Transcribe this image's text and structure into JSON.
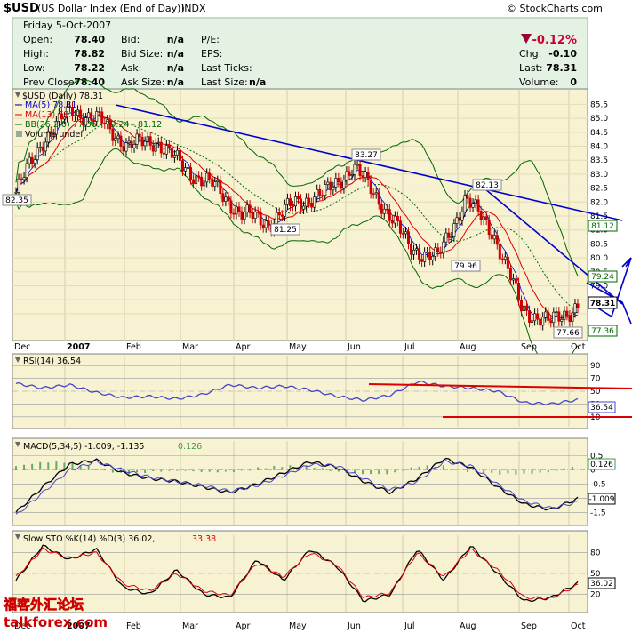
{
  "header": {
    "symbol": "$USD",
    "description": "(US Dollar Index (End of Day))",
    "exchange": "INDX",
    "copyright": "© StockCharts.com",
    "date": "Friday  5-Oct-2007",
    "open_label": "Open:",
    "open": "78.40",
    "high_label": "High:",
    "high": "78.82",
    "low_label": "Low:",
    "low": "78.22",
    "prevclose_label": "Prev Close:",
    "prevclose": "78.40",
    "bid_label": "Bid:",
    "bid": "n/a",
    "bidsize_label": "Bid Size:",
    "bidsize": "n/a",
    "ask_label": "Ask:",
    "ask": "n/a",
    "asksize_label": "Ask Size:",
    "asksize": "n/a",
    "pe_label": "P/E:",
    "eps_label": "EPS:",
    "lastticks_label": "Last Ticks:",
    "lastsize_label": "Last Size:",
    "lastsize": "n/a",
    "pct_change": "-0.12%",
    "chg_label": "Chg:",
    "chg": "-0.10",
    "last_label": "Last:",
    "last": "78.31",
    "volume_label": "Volume:",
    "volume": "0"
  },
  "main_legend": {
    "series": "$USD (Daily) 78.31",
    "ma5": "MA(5) 78.31",
    "ma13": "MA(13) 78.43",
    "bb": "BB(26,2.0) 77.36 - 79.24 - 81.12",
    "volume": "Volume undef"
  },
  "annotations": [
    "82.35",
    "81.25",
    "83.27",
    "82.13",
    "79.96",
    "77.66"
  ],
  "right_labels": {
    "upper": "81.12",
    "mid": "79.24",
    "price": "78.31",
    "lower": "77.36"
  },
  "rsi_legend": "RSI(14) 36.54",
  "rsi_value": "36.54",
  "macd_legend": {
    "main": "MACD(5,34,5) -1.009, -1.135",
    "hist": "0.126"
  },
  "macd_values": {
    "hist": "0.126",
    "macd": "-1.009"
  },
  "sto_legend": {
    "main": "Slow STO %K(14) %D(3) 36.02,",
    "d": "33.38"
  },
  "sto_value": "36.02",
  "watermark": {
    "cn": "福客外汇论坛",
    "site": "talkforex.com"
  },
  "colors": {
    "panel_bg": "#f7f2d2",
    "header_bg": "#e4f2e4",
    "up": "#000000",
    "down": "#cc0000",
    "trendline": "#0000cc",
    "bb": "#006600",
    "ma13": "#dd0000",
    "rsi": "#4444cc"
  },
  "chart_data": [
    {
      "type": "candlestick",
      "title": "$USD (US Dollar Index (End of Day))",
      "x_months": [
        "Dec",
        "2007",
        "Feb",
        "Mar",
        "Apr",
        "May",
        "Jun",
        "Jul",
        "Aug",
        "Sep",
        "Oct"
      ],
      "y_ticks": [
        78.0,
        78.5,
        79.0,
        79.5,
        80.0,
        80.5,
        81.0,
        81.5,
        82.0,
        82.5,
        83.0,
        83.5,
        84.0,
        84.5,
        85.0,
        85.5
      ],
      "ylim": [
        77.2,
        85.8
      ],
      "close_points": [
        {
          "month": "Dec",
          "close": 82.35
        },
        {
          "month": "Jan",
          "close": 84.3
        },
        {
          "month": "Jan-late",
          "close": 85.3
        },
        {
          "month": "Feb",
          "close": 84.9
        },
        {
          "month": "Feb-late",
          "close": 84.0
        },
        {
          "month": "Mar",
          "close": 84.2
        },
        {
          "month": "Mar-mid",
          "close": 83.2
        },
        {
          "month": "Apr",
          "close": 82.6
        },
        {
          "month": "Apr-late",
          "close": 81.6
        },
        {
          "month": "May",
          "close": 81.25
        },
        {
          "month": "May-late",
          "close": 82.0
        },
        {
          "month": "Jun",
          "close": 82.3
        },
        {
          "month": "Jun-mid",
          "close": 83.27
        },
        {
          "month": "Jul",
          "close": 82.0
        },
        {
          "month": "Jul-late",
          "close": 80.4
        },
        {
          "month": "Aug",
          "close": 79.96
        },
        {
          "month": "Aug-mid",
          "close": 82.13
        },
        {
          "month": "Sep",
          "close": 80.9
        },
        {
          "month": "Sep-late",
          "close": 78.2
        },
        {
          "month": "Oct",
          "close": 77.66
        },
        {
          "month": "Oct-5",
          "close": 78.31
        }
      ],
      "bollinger": {
        "upper": 81.12,
        "mid": 79.24,
        "lower": 77.36
      },
      "ma5": 78.31,
      "ma13": 78.43
    },
    {
      "type": "line",
      "title": "RSI(14)",
      "y_ticks": [
        10,
        30,
        50,
        70,
        90
      ],
      "ylim": [
        0,
        100
      ],
      "series": [
        {
          "name": "RSI(14)",
          "values": [
            62,
            55,
            60,
            48,
            40,
            42,
            38,
            45,
            60,
            55,
            58,
            52,
            42,
            36,
            44,
            65,
            58,
            55,
            50,
            32,
            30,
            36.54
          ]
        }
      ]
    },
    {
      "type": "line",
      "title": "MACD(5,34,5)",
      "y_ticks": [
        -1.5,
        -1.0,
        -0.5,
        0.0,
        0.5
      ],
      "ylim": [
        -1.8,
        0.9
      ],
      "series": [
        {
          "name": "MACD",
          "values": [
            -1.5,
            -0.6,
            0.2,
            0.35,
            -0.1,
            -0.3,
            -0.4,
            -0.6,
            -0.8,
            -0.5,
            -0.1,
            0.3,
            0.1,
            -0.4,
            -0.8,
            -0.3,
            0.4,
            0.1,
            -0.6,
            -1.2,
            -1.4,
            -1.009
          ]
        },
        {
          "name": "Signal",
          "values": [
            -1.6,
            -0.8,
            0.0,
            0.3,
            0.0,
            -0.25,
            -0.4,
            -0.55,
            -0.75,
            -0.55,
            -0.2,
            0.2,
            0.15,
            -0.3,
            -0.7,
            -0.4,
            0.3,
            0.15,
            -0.5,
            -1.1,
            -1.35,
            -1.135
          ]
        }
      ]
    },
    {
      "type": "line",
      "title": "Slow STO %K(14) %D(3)",
      "y_ticks": [
        20,
        50,
        80
      ],
      "ylim": [
        0,
        100
      ],
      "series": [
        {
          "name": "%K",
          "values": [
            40,
            90,
            70,
            85,
            30,
            20,
            55,
            20,
            15,
            70,
            40,
            85,
            60,
            10,
            20,
            85,
            40,
            90,
            50,
            10,
            15,
            36.02
          ]
        },
        {
          "name": "%D",
          "values": [
            45,
            85,
            72,
            80,
            35,
            25,
            50,
            25,
            18,
            65,
            45,
            80,
            62,
            15,
            22,
            80,
            45,
            85,
            55,
            15,
            14,
            33.38
          ]
        }
      ]
    }
  ]
}
